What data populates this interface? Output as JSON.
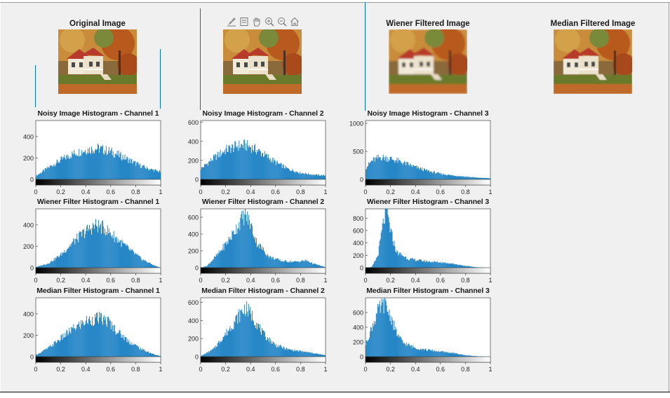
{
  "images": [
    {
      "title": "Original Image",
      "style": "original"
    },
    {
      "title": "",
      "style": "original"
    },
    {
      "title": "Wiener Filtered Image",
      "style": "wiener"
    },
    {
      "title": "Median Filtered Image",
      "style": "median"
    }
  ],
  "toolbar": {
    "icons": [
      "brush-icon",
      "data-tips-icon",
      "pan-hand-icon",
      "zoom-in-icon",
      "zoom-out-icon",
      "home-icon"
    ]
  },
  "colors": {
    "bar": "#0072BD",
    "background": "#f0f0f0",
    "axes": "#ffffff"
  },
  "chart_data": [
    {
      "type": "bar",
      "title": "Noisy Image Histogram - Channel 1",
      "xlim": [
        0,
        1
      ],
      "ylim": [
        0,
        550
      ],
      "yticks": [
        0,
        200,
        400
      ],
      "xticks": [
        0,
        0.2,
        0.4,
        0.6,
        0.8,
        1
      ],
      "xtick_labels": [
        "0",
        "0.2",
        "0.4",
        "0.6",
        "0.8",
        "1"
      ],
      "colorbar": true,
      "profile": [
        [
          0,
          30
        ],
        [
          0.1,
          110
        ],
        [
          0.2,
          180
        ],
        [
          0.3,
          240
        ],
        [
          0.4,
          275
        ],
        [
          0.5,
          290
        ],
        [
          0.6,
          260
        ],
        [
          0.7,
          210
        ],
        [
          0.8,
          150
        ],
        [
          0.9,
          100
        ],
        [
          1,
          70
        ]
      ]
    },
    {
      "type": "bar",
      "title": "Noisy Image Histogram - Channel 2",
      "xlim": [
        0,
        1
      ],
      "ylim": [
        0,
        620
      ],
      "yticks": [
        0,
        200,
        400,
        600
      ],
      "xticks": [
        0,
        0.2,
        0.4,
        0.6,
        0.8,
        1
      ],
      "xtick_labels": [
        "0",
        "0.2",
        "0.4",
        "0.6",
        "0.8",
        "1"
      ],
      "colorbar": true,
      "profile": [
        [
          0,
          110
        ],
        [
          0.1,
          220
        ],
        [
          0.2,
          310
        ],
        [
          0.3,
          355
        ],
        [
          0.35,
          360
        ],
        [
          0.4,
          345
        ],
        [
          0.5,
          270
        ],
        [
          0.6,
          180
        ],
        [
          0.7,
          110
        ],
        [
          0.8,
          70
        ],
        [
          0.9,
          50
        ],
        [
          1,
          40
        ]
      ]
    },
    {
      "type": "bar",
      "title": "Noisy Image Histogram - Channel 3",
      "xlim": [
        0,
        1
      ],
      "ylim": [
        0,
        1050
      ],
      "yticks": [
        0,
        500,
        1000
      ],
      "xticks": [
        0,
        0.2,
        0.4,
        0.6,
        0.8,
        1
      ],
      "xtick_labels": [
        "0",
        "0.2",
        "0.4",
        "0.6",
        "0.8",
        "1"
      ],
      "colorbar": true,
      "profile": [
        [
          0,
          200
        ],
        [
          0.05,
          330
        ],
        [
          0.12,
          400
        ],
        [
          0.2,
          370
        ],
        [
          0.3,
          300
        ],
        [
          0.4,
          220
        ],
        [
          0.5,
          150
        ],
        [
          0.6,
          100
        ],
        [
          0.7,
          70
        ],
        [
          0.8,
          50
        ],
        [
          0.9,
          30
        ],
        [
          1,
          20
        ]
      ]
    },
    {
      "type": "bar",
      "title": "Wiener Filter Histogram - Channel 1",
      "xlim": [
        0,
        1
      ],
      "ylim": [
        0,
        550
      ],
      "yticks": [
        0,
        200,
        400
      ],
      "xticks": [
        0,
        0.2,
        0.4,
        0.6,
        0.8,
        1
      ],
      "xtick_labels": [
        "0",
        "0.2",
        "0.4",
        "0.6",
        "0.8",
        "1"
      ],
      "colorbar": true,
      "profile": [
        [
          0,
          5
        ],
        [
          0.1,
          40
        ],
        [
          0.2,
          120
        ],
        [
          0.3,
          240
        ],
        [
          0.4,
          340
        ],
        [
          0.48,
          395
        ],
        [
          0.55,
          370
        ],
        [
          0.65,
          270
        ],
        [
          0.75,
          170
        ],
        [
          0.85,
          80
        ],
        [
          0.95,
          20
        ],
        [
          1,
          0
        ]
      ]
    },
    {
      "type": "bar",
      "title": "Wiener Filter Histogram - Channel 2",
      "xlim": [
        0,
        1
      ],
      "ylim": [
        0,
        700
      ],
      "yticks": [
        0,
        200,
        400,
        600
      ],
      "xticks": [
        0,
        0.2,
        0.4,
        0.6,
        0.8,
        1
      ],
      "xtick_labels": [
        "0",
        "0.2",
        "0.4",
        "0.6",
        "0.8",
        "1"
      ],
      "colorbar": true,
      "profile": [
        [
          0,
          0
        ],
        [
          0.05,
          20
        ],
        [
          0.15,
          180
        ],
        [
          0.25,
          380
        ],
        [
          0.33,
          580
        ],
        [
          0.36,
          630
        ],
        [
          0.4,
          520
        ],
        [
          0.45,
          300
        ],
        [
          0.55,
          130
        ],
        [
          0.65,
          80
        ],
        [
          0.75,
          70
        ],
        [
          0.85,
          85
        ],
        [
          0.9,
          50
        ],
        [
          1,
          5
        ]
      ]
    },
    {
      "type": "bar",
      "title": "Wiener Filter Histogram - Channel 3",
      "xlim": [
        0,
        1
      ],
      "ylim": [
        0,
        950
      ],
      "yticks": [
        0,
        200,
        400,
        600,
        800
      ],
      "xticks": [
        0,
        0.2,
        0.4,
        0.6,
        0.8,
        1
      ],
      "xtick_labels": [
        "0",
        "0.2",
        "0.4",
        "0.6",
        "0.8",
        "1"
      ],
      "colorbar": true,
      "profile": [
        [
          0,
          0
        ],
        [
          0.05,
          10
        ],
        [
          0.1,
          200
        ],
        [
          0.14,
          700
        ],
        [
          0.17,
          950
        ],
        [
          0.2,
          600
        ],
        [
          0.25,
          250
        ],
        [
          0.35,
          140
        ],
        [
          0.5,
          100
        ],
        [
          0.65,
          80
        ],
        [
          0.8,
          30
        ],
        [
          0.9,
          5
        ],
        [
          1,
          0
        ]
      ]
    },
    {
      "type": "bar",
      "title": "Median Filter Histogram - Channel 1",
      "xlim": [
        0,
        1
      ],
      "ylim": [
        0,
        550
      ],
      "yticks": [
        0,
        200,
        400
      ],
      "xticks": [
        0,
        0.2,
        0.4,
        0.6,
        0.8,
        1
      ],
      "xtick_labels": [
        "0",
        "0.2",
        "0.4",
        "0.6",
        "0.8",
        "1"
      ],
      "colorbar": true,
      "profile": [
        [
          0,
          15
        ],
        [
          0.1,
          80
        ],
        [
          0.2,
          170
        ],
        [
          0.3,
          260
        ],
        [
          0.4,
          330
        ],
        [
          0.5,
          360
        ],
        [
          0.58,
          330
        ],
        [
          0.65,
          240
        ],
        [
          0.75,
          140
        ],
        [
          0.85,
          70
        ],
        [
          0.95,
          20
        ],
        [
          1,
          5
        ]
      ]
    },
    {
      "type": "bar",
      "title": "Median Filter Histogram - Channel 2",
      "xlim": [
        0,
        1
      ],
      "ylim": [
        0,
        650
      ],
      "yticks": [
        0,
        200,
        400,
        600
      ],
      "xticks": [
        0,
        0.2,
        0.4,
        0.6,
        0.8,
        1
      ],
      "xtick_labels": [
        "0",
        "0.2",
        "0.4",
        "0.6",
        "0.8",
        "1"
      ],
      "colorbar": true,
      "profile": [
        [
          0,
          5
        ],
        [
          0.1,
          80
        ],
        [
          0.2,
          250
        ],
        [
          0.3,
          440
        ],
        [
          0.36,
          540
        ],
        [
          0.42,
          440
        ],
        [
          0.5,
          250
        ],
        [
          0.6,
          130
        ],
        [
          0.7,
          80
        ],
        [
          0.8,
          60
        ],
        [
          0.9,
          40
        ],
        [
          1,
          15
        ]
      ]
    },
    {
      "type": "bar",
      "title": "Median Filter Histogram - Channel 3",
      "xlim": [
        0,
        1
      ],
      "ylim": [
        0,
        800
      ],
      "yticks": [
        0,
        200,
        400,
        600
      ],
      "xticks": [
        0,
        0.2,
        0.4,
        0.6,
        0.8,
        1
      ],
      "xtick_labels": [
        "0",
        "0.2",
        "0.4",
        "0.6",
        "0.8",
        "1"
      ],
      "colorbar": true,
      "profile": [
        [
          0,
          150
        ],
        [
          0.05,
          400
        ],
        [
          0.1,
          620
        ],
        [
          0.15,
          720
        ],
        [
          0.2,
          560
        ],
        [
          0.25,
          320
        ],
        [
          0.3,
          190
        ],
        [
          0.4,
          120
        ],
        [
          0.5,
          90
        ],
        [
          0.6,
          70
        ],
        [
          0.7,
          50
        ],
        [
          0.8,
          20
        ],
        [
          0.9,
          5
        ],
        [
          1,
          0
        ]
      ]
    }
  ]
}
